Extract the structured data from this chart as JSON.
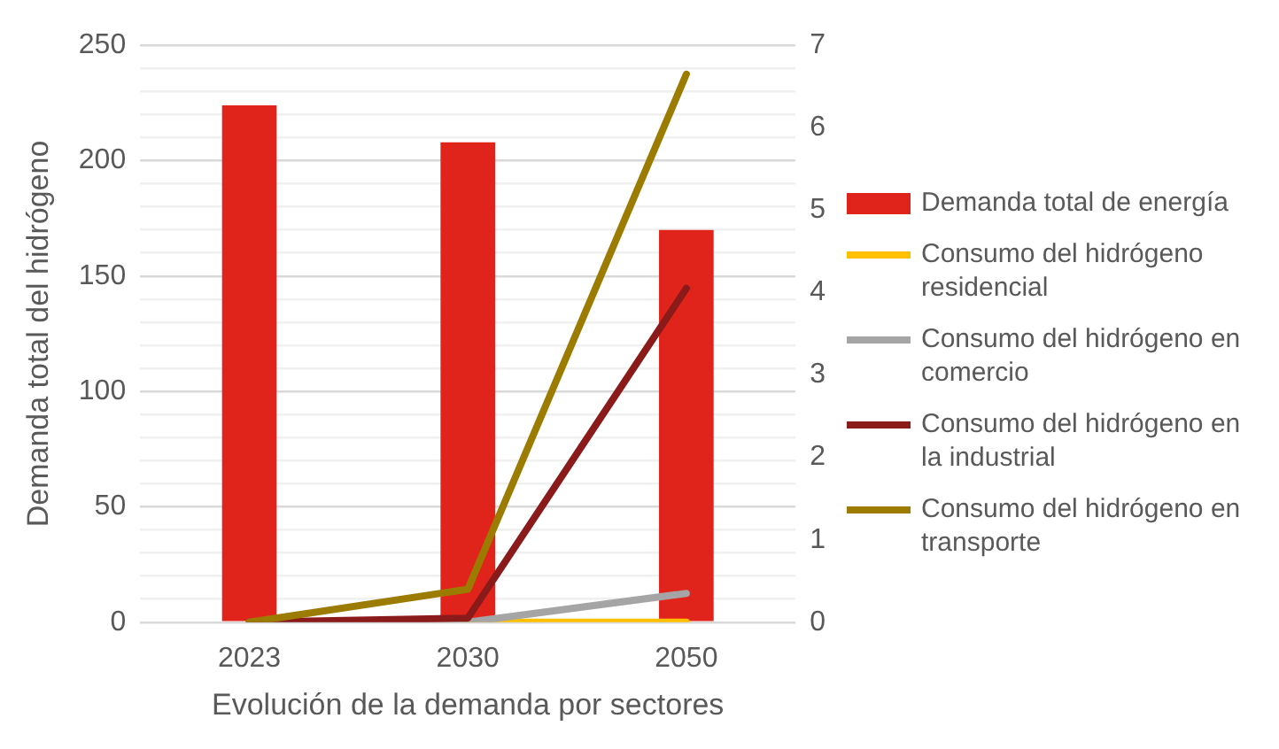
{
  "chart_data": {
    "type": "bar",
    "xlabel": "Evolución de la demanda por sectores",
    "ylabel": "Demanda total del hidrógeno",
    "categories": [
      "2023",
      "2030",
      "2050"
    ],
    "ylim": [
      0,
      250
    ],
    "yticks": [
      0,
      {
        "value": 10,
        "label": null
      },
      {
        "value": 20,
        "label": null
      },
      {
        "value": 30,
        "label": null
      },
      {
        "value": 40,
        "label": null
      },
      50,
      {
        "value": 60,
        "label": null
      },
      {
        "value": 70,
        "label": null
      },
      {
        "value": 80,
        "label": null
      },
      {
        "value": 90,
        "label": null
      },
      100,
      {
        "value": 110,
        "label": null
      },
      {
        "value": 120,
        "label": null
      },
      {
        "value": 130,
        "label": null
      },
      {
        "value": 140,
        "label": null
      },
      150,
      {
        "value": 160,
        "label": null
      },
      {
        "value": 170,
        "label": null
      },
      {
        "value": 180,
        "label": null
      },
      {
        "value": 190,
        "label": null
      },
      200,
      {
        "value": 210,
        "label": null
      },
      {
        "value": 220,
        "label": null
      },
      {
        "value": 230,
        "label": null
      },
      {
        "value": 240,
        "label": null
      },
      250
    ],
    "y2lim": [
      0,
      7
    ],
    "y2ticks": [
      0,
      1,
      2,
      3,
      4,
      5,
      6,
      7
    ],
    "grid": "y",
    "legend": "right",
    "marker": "none",
    "line_style": "solid",
    "series": [
      {
        "name": "Demanda total de energía",
        "color": "#e0241b",
        "values": [
          224,
          208,
          170
        ]
      },
      {
        "name": "Consumo del hidrógeno residencial",
        "type": "line",
        "axis": "y2",
        "color": "#ffc000",
        "values": [
          null,
          0,
          0
        ]
      },
      {
        "name": "Consumo del hidrógeno en comercio",
        "type": "line",
        "axis": "y2",
        "color": "#a5a5a5",
        "values": [
          0,
          0,
          0.35
        ]
      },
      {
        "name": "Consumo del hidrógeno en la industrial",
        "type": "line",
        "axis": "y2",
        "color": "#8b1a1a",
        "values": [
          0,
          0.05,
          4.05
        ]
      },
      {
        "name": "Consumo del hidrógeno en transporte",
        "type": "line",
        "axis": "y2",
        "color": "#9c7c00",
        "values": [
          0,
          0.4,
          6.65
        ]
      }
    ]
  }
}
